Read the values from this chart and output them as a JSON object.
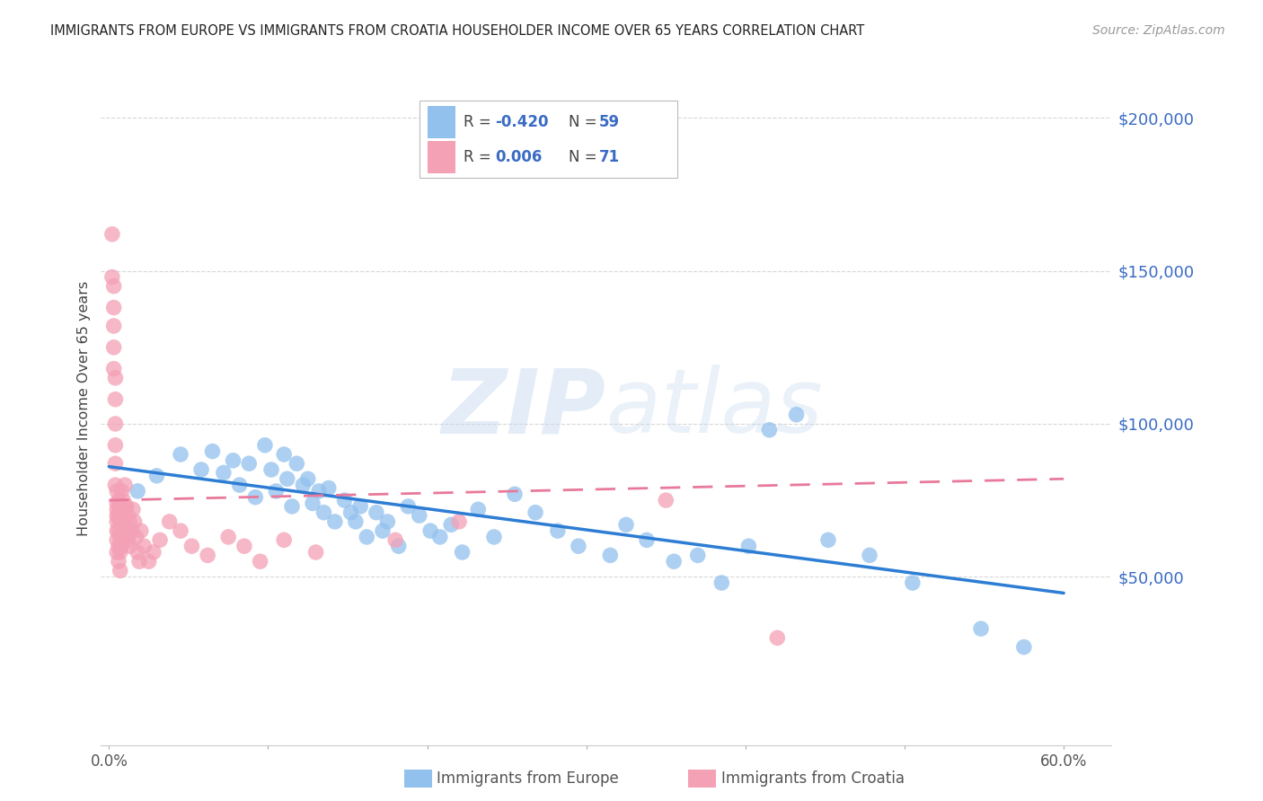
{
  "title": "IMMIGRANTS FROM EUROPE VS IMMIGRANTS FROM CROATIA HOUSEHOLDER INCOME OVER 65 YEARS CORRELATION CHART",
  "source": "Source: ZipAtlas.com",
  "ylabel": "Householder Income Over 65 years",
  "watermark": "ZIPatlas",
  "legend_europe_R": "-0.420",
  "legend_europe_N": "59",
  "legend_croatia_R": "0.006",
  "legend_croatia_N": "71",
  "legend_label_europe": "Immigrants from Europe",
  "legend_label_croatia": "Immigrants from Croatia",
  "ytick_values": [
    50000,
    100000,
    150000,
    200000
  ],
  "ytick_labels": [
    "$50,000",
    "$100,000",
    "$150,000",
    "$200,000"
  ],
  "ylim": [
    -5000,
    215000
  ],
  "xlim": [
    -0.005,
    0.63
  ],
  "color_europe": "#92c1ee",
  "color_croatia": "#f4a0b5",
  "color_europe_line": "#2e7dd4",
  "color_croatia_line": "#e8799a",
  "background_color": "#ffffff",
  "title_color": "#222222",
  "ytick_color": "#3a6bc4",
  "source_color": "#999999",
  "grid_color": "#d8d8d8",
  "europe_scatter_x": [
    0.018,
    0.03,
    0.045,
    0.058,
    0.065,
    0.072,
    0.078,
    0.082,
    0.088,
    0.092,
    0.098,
    0.102,
    0.105,
    0.11,
    0.112,
    0.115,
    0.118,
    0.122,
    0.125,
    0.128,
    0.132,
    0.135,
    0.138,
    0.142,
    0.148,
    0.152,
    0.155,
    0.158,
    0.162,
    0.168,
    0.172,
    0.175,
    0.182,
    0.188,
    0.195,
    0.202,
    0.208,
    0.215,
    0.222,
    0.232,
    0.242,
    0.255,
    0.268,
    0.282,
    0.295,
    0.315,
    0.325,
    0.338,
    0.355,
    0.37,
    0.385,
    0.402,
    0.415,
    0.432,
    0.452,
    0.478,
    0.505,
    0.548,
    0.575
  ],
  "europe_scatter_y": [
    78000,
    83000,
    90000,
    85000,
    91000,
    84000,
    88000,
    80000,
    87000,
    76000,
    93000,
    85000,
    78000,
    90000,
    82000,
    73000,
    87000,
    80000,
    82000,
    74000,
    78000,
    71000,
    79000,
    68000,
    75000,
    71000,
    68000,
    73000,
    63000,
    71000,
    65000,
    68000,
    60000,
    73000,
    70000,
    65000,
    63000,
    67000,
    58000,
    72000,
    63000,
    77000,
    71000,
    65000,
    60000,
    57000,
    67000,
    62000,
    55000,
    57000,
    48000,
    60000,
    98000,
    103000,
    62000,
    57000,
    48000,
    33000,
    27000
  ],
  "croatia_scatter_x": [
    0.002,
    0.002,
    0.003,
    0.003,
    0.003,
    0.003,
    0.003,
    0.004,
    0.004,
    0.004,
    0.004,
    0.004,
    0.004,
    0.005,
    0.005,
    0.005,
    0.005,
    0.005,
    0.005,
    0.005,
    0.005,
    0.006,
    0.006,
    0.006,
    0.006,
    0.006,
    0.007,
    0.007,
    0.007,
    0.007,
    0.007,
    0.008,
    0.008,
    0.008,
    0.008,
    0.009,
    0.009,
    0.009,
    0.01,
    0.01,
    0.01,
    0.011,
    0.011,
    0.012,
    0.012,
    0.013,
    0.013,
    0.014,
    0.015,
    0.016,
    0.017,
    0.018,
    0.019,
    0.02,
    0.022,
    0.025,
    0.028,
    0.032,
    0.038,
    0.045,
    0.052,
    0.062,
    0.075,
    0.085,
    0.095,
    0.11,
    0.13,
    0.18,
    0.22,
    0.35,
    0.42
  ],
  "croatia_scatter_y": [
    162000,
    148000,
    145000,
    138000,
    132000,
    125000,
    118000,
    115000,
    108000,
    100000,
    93000,
    87000,
    80000,
    78000,
    74000,
    70000,
    65000,
    72000,
    68000,
    62000,
    58000,
    75000,
    70000,
    65000,
    60000,
    55000,
    72000,
    68000,
    63000,
    58000,
    52000,
    78000,
    72000,
    67000,
    60000,
    75000,
    68000,
    62000,
    80000,
    72000,
    65000,
    73000,
    65000,
    70000,
    62000,
    68000,
    60000,
    65000,
    72000,
    68000,
    63000,
    58000,
    55000,
    65000,
    60000,
    55000,
    58000,
    62000,
    68000,
    65000,
    60000,
    57000,
    63000,
    60000,
    55000,
    62000,
    58000,
    62000,
    68000,
    75000,
    30000
  ]
}
